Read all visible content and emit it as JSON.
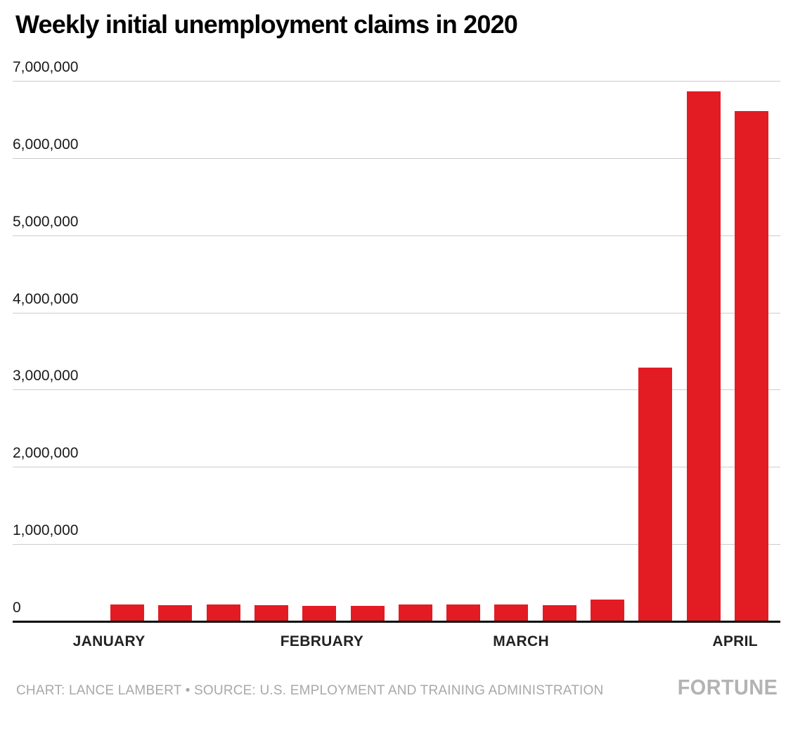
{
  "chart_data": {
    "type": "bar",
    "title": "Weekly initial unemployment claims in 2020",
    "categories": [
      "JANUARY",
      "FEBRUARY",
      "MARCH",
      "APRIL"
    ],
    "values": [
      214000,
      207000,
      220000,
      212000,
      201000,
      204000,
      215000,
      220000,
      217000,
      211000,
      282000,
      3283000,
      6867000,
      6606000
    ],
    "ylim": [
      0,
      7000000
    ],
    "ytick_step": 1000000,
    "yticklabels": [
      "0",
      "1,000,000",
      "2,000,000",
      "3,000,000",
      "4,000,000",
      "5,000,000",
      "6,000,000",
      "7,000,000"
    ],
    "bar_color": "#e31b23",
    "grid": true,
    "legend": false,
    "xlabel": "",
    "ylabel": ""
  },
  "footer": {
    "credit": "CHART: LANCE LAMBERT • SOURCE: U.S. EMPLOYMENT AND TRAINING ADMINISTRATION",
    "logo": "FORTUNE"
  }
}
